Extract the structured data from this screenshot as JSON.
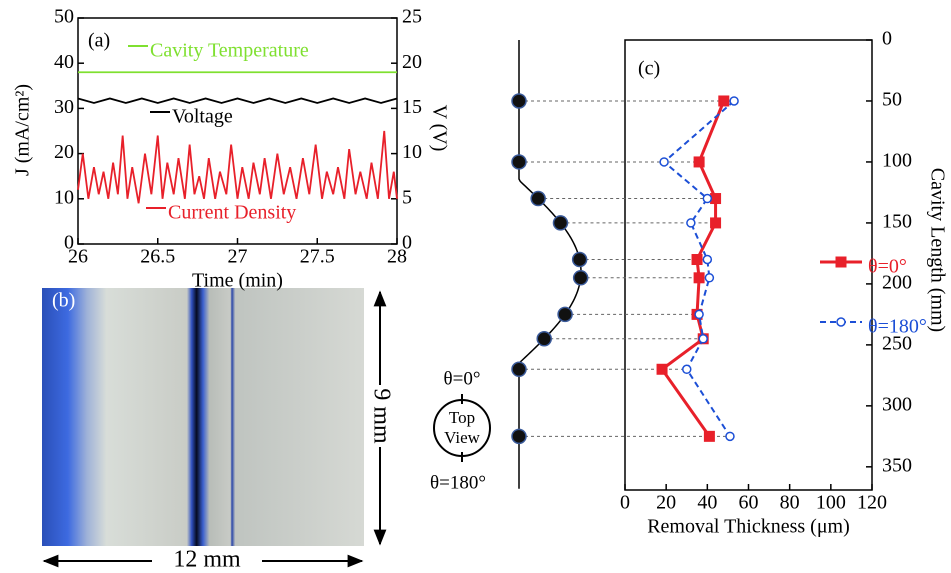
{
  "chart_data": [
    {
      "type": "line",
      "panel_label": "(a)",
      "xlabel": "Time (min)",
      "ylabel": "J (mA/cm²)",
      "y2label": "V (V)",
      "xlim": [
        26,
        28
      ],
      "xticks": [
        26,
        26.5,
        27,
        27.5,
        28
      ],
      "ylim": [
        0,
        50
      ],
      "yticks": [
        0,
        10,
        20,
        30,
        40,
        50
      ],
      "y2lim": [
        0,
        25
      ],
      "y2ticks": [
        0,
        5,
        10,
        15,
        20,
        25
      ],
      "series": [
        {
          "name": "Cavity Temperature",
          "color": "#7fe030",
          "x": [
            26,
            26.5,
            27,
            27.5,
            28
          ],
          "values": [
            38,
            38,
            38,
            38,
            38
          ]
        },
        {
          "name": "Voltage",
          "color": "#000000",
          "axis": "y2",
          "x": [
            26,
            26.1,
            26.2,
            26.3,
            26.4,
            26.5,
            26.6,
            26.7,
            26.8,
            26.9,
            27,
            27.1,
            27.2,
            27.3,
            27.4,
            27.5,
            27.6,
            27.7,
            27.8,
            27.9,
            28
          ],
          "values": [
            16.1,
            15.6,
            16.1,
            15.6,
            16.1,
            15.6,
            16.1,
            15.6,
            16.1,
            15.6,
            16.1,
            15.6,
            16.1,
            15.6,
            16.1,
            15.6,
            16.1,
            15.6,
            16.1,
            15.6,
            16.1
          ]
        },
        {
          "name": "Current Density",
          "color": "#e8202a",
          "x": [
            26,
            26.03,
            26.065,
            26.1,
            26.13,
            26.16,
            26.19,
            26.22,
            26.25,
            26.28,
            26.31,
            26.34,
            26.38,
            26.42,
            26.46,
            26.5,
            26.53,
            26.56,
            26.6,
            26.63,
            26.67,
            26.7,
            26.73,
            26.76,
            26.79,
            26.82,
            26.86,
            26.89,
            26.93,
            26.96,
            27.0,
            27.03,
            27.07,
            27.1,
            27.14,
            27.17,
            27.21,
            27.25,
            27.29,
            27.33,
            27.37,
            27.41,
            27.45,
            27.49,
            27.53,
            27.56,
            27.6,
            27.63,
            27.67,
            27.7,
            27.74,
            27.77,
            27.81,
            27.84,
            27.88,
            27.92,
            27.95,
            27.98,
            28
          ],
          "values": [
            12,
            20,
            10,
            17,
            11,
            16,
            10,
            18,
            11,
            24,
            10,
            17,
            9,
            20,
            11,
            24,
            10,
            18,
            11,
            19,
            10,
            22,
            11,
            15,
            10,
            19,
            10,
            16,
            11,
            22,
            10,
            17,
            10,
            18,
            11,
            19,
            10,
            20,
            11,
            17,
            10,
            19,
            11,
            22,
            10,
            16,
            11,
            17,
            10,
            21,
            11,
            16,
            10,
            18,
            10,
            25,
            10,
            16,
            10
          ]
        }
      ]
    },
    {
      "type": "line",
      "orientation": "horizontal",
      "panel_label": "(c)",
      "xlabel": "Cavity Length (mm)",
      "ylabel": "Removal Thickness (μm)",
      "x": [
        50,
        100,
        130,
        150,
        180,
        195,
        225,
        245,
        270,
        325
      ],
      "xlim": [
        0,
        369
      ],
      "xticks": [
        0,
        50,
        100,
        150,
        200,
        250,
        300,
        350
      ],
      "ylim": [
        0,
        120
      ],
      "yticks": [
        0,
        20,
        40,
        60,
        80,
        100,
        120
      ],
      "series": [
        {
          "name": "θ=0°",
          "color": "#e8202a",
          "marker": "square",
          "dashed": false,
          "values": [
            48,
            36,
            44,
            44,
            35,
            36,
            35,
            38,
            18,
            41
          ]
        },
        {
          "name": "θ=180°",
          "color": "#1c4fd6",
          "marker": "circle",
          "dashed": true,
          "values": [
            53,
            19,
            40,
            32,
            40,
            41,
            36,
            38,
            30,
            51
          ]
        }
      ]
    }
  ],
  "panel_b": {
    "label": "(b)",
    "height_label": "9 mm",
    "width_label": "12 mm"
  },
  "schematic": {
    "angle_top": "θ=0°",
    "view_top": "Top",
    "view_bottom": "View",
    "angle_bottom": "θ=180°"
  }
}
